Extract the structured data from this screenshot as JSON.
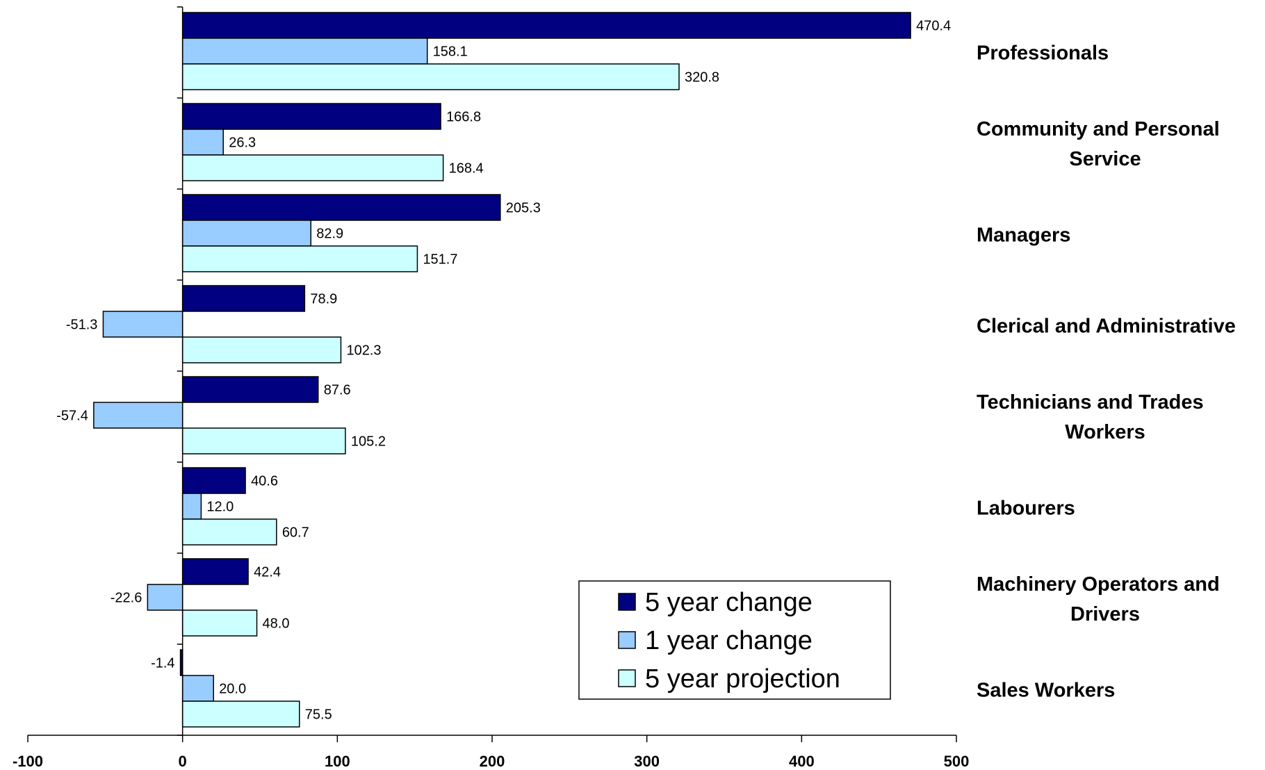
{
  "chart_data": {
    "type": "bar",
    "orientation": "horizontal",
    "title": "",
    "xlabel": "",
    "ylabel": "",
    "xlim": [
      -100,
      500
    ],
    "xticks": [
      -100,
      0,
      100,
      200,
      300,
      400,
      500
    ],
    "grid": false,
    "legend_position": "bottom-right",
    "categories": [
      {
        "lines": [
          "Professionals"
        ]
      },
      {
        "lines": [
          "Community and Personal",
          "Service"
        ]
      },
      {
        "lines": [
          "Managers"
        ]
      },
      {
        "lines": [
          "Clerical and Administrative"
        ]
      },
      {
        "lines": [
          "Technicians and Trades",
          "Workers"
        ]
      },
      {
        "lines": [
          "Labourers"
        ]
      },
      {
        "lines": [
          "Machinery Operators and",
          "Drivers"
        ]
      },
      {
        "lines": [
          "Sales Workers"
        ]
      }
    ],
    "series": [
      {
        "name": "5 year change",
        "color": "#000080",
        "values": [
          470.4,
          166.8,
          205.3,
          78.9,
          87.6,
          40.6,
          42.4,
          -1.4
        ],
        "labels": [
          "470.4",
          "166.8",
          "205.3",
          "78.9",
          "87.6",
          "40.6",
          "42.4",
          "-1.4"
        ]
      },
      {
        "name": "1 year change",
        "color": "#99CCFF",
        "values": [
          158.1,
          26.3,
          82.9,
          -51.3,
          -57.4,
          12.0,
          -22.6,
          20.0
        ],
        "labels": [
          "158.1",
          "26.3",
          "82.9",
          "-51.3",
          "-57.4",
          "12.0",
          "-22.6",
          "20.0"
        ]
      },
      {
        "name": "5 year projection",
        "color": "#CCFFFF",
        "values": [
          320.8,
          168.4,
          151.7,
          102.3,
          105.2,
          60.7,
          48.0,
          75.5
        ],
        "labels": [
          "320.8",
          "168.4",
          "151.7",
          "102.3",
          "105.2",
          "60.7",
          "48.0",
          "75.5"
        ]
      }
    ]
  }
}
